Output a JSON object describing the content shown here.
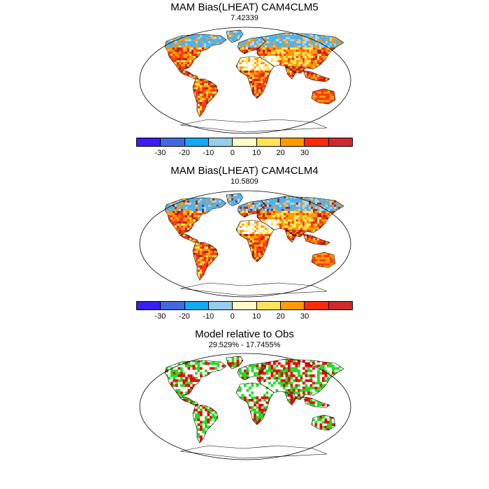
{
  "panels": [
    {
      "title": "MAM Bias(LHEAT) CAM4CLM5",
      "subtitle": "7.42339"
    },
    {
      "title": "MAM Bias(LHEAT) CAM4CLM4",
      "subtitle": "10.5809"
    },
    {
      "title": "Model relative to Obs",
      "subtitle": "29.529% - 17.7455%"
    }
  ],
  "colorbar": {
    "colors": [
      "#3a1ef2",
      "#4169e1",
      "#12a8f2",
      "#96cdeb",
      "#fffac8",
      "#ffe45a",
      "#ff9a00",
      "#ff2a0a",
      "#d12a2a"
    ],
    "tick_labels": [
      "-30",
      "-20",
      "-10",
      "0",
      "10",
      "20",
      "30"
    ]
  },
  "colors": {
    "cool": "#4fb2ef",
    "lightcool": "#a8d8f0",
    "warm": "#ff9a00",
    "hot": "#ff3b10",
    "darkhot": "#b8221a",
    "yellow": "#ffe45a",
    "green": "#22dd22",
    "red": "#ee0000",
    "land_outline": "#000000"
  }
}
